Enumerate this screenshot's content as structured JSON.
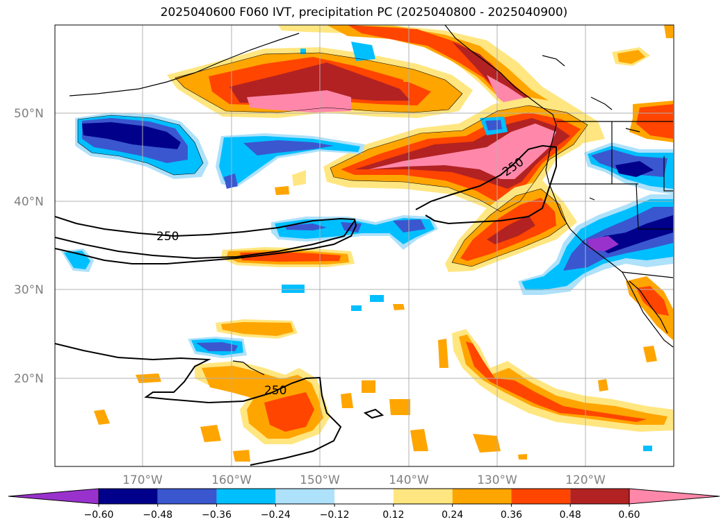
{
  "title": "2025040600 F060 IVT, precipitation PC (2025040800 - 2025040900)",
  "latitude_labels": [
    "50°N",
    "40°N",
    "30°N",
    "20°N"
  ],
  "longitude_labels": [
    "170°W",
    "160°W",
    "150°W",
    "140°W",
    "130°W",
    "120°W"
  ],
  "contour_labels": [
    "250",
    "250",
    "250"
  ],
  "colorbar": {
    "tick_labels": [
      "−0.60",
      "−0.48",
      "−0.36",
      "−0.24",
      "−0.12",
      "0.12",
      "0.24",
      "0.36",
      "0.48",
      "0.60"
    ],
    "colors": [
      "#9932cc",
      "#00008b",
      "#3a57cf",
      "#00bfff",
      "#aee1fa",
      "#ffffff",
      "#ffe680",
      "#ffa500",
      "#ff4500",
      "#b22222",
      "#ff88aa"
    ]
  },
  "colors": {
    "neg_strong": "#00008b",
    "neg_mid": "#3a57cf",
    "neg_light": "#00bfff",
    "neg_faint": "#aee1fa",
    "pos_faint": "#ffe680",
    "pos_light": "#ffa500",
    "pos_mid": "#ff4500",
    "pos_strong": "#b22222",
    "pos_max": "#ff88aa",
    "neg_max": "#9932cc"
  }
}
